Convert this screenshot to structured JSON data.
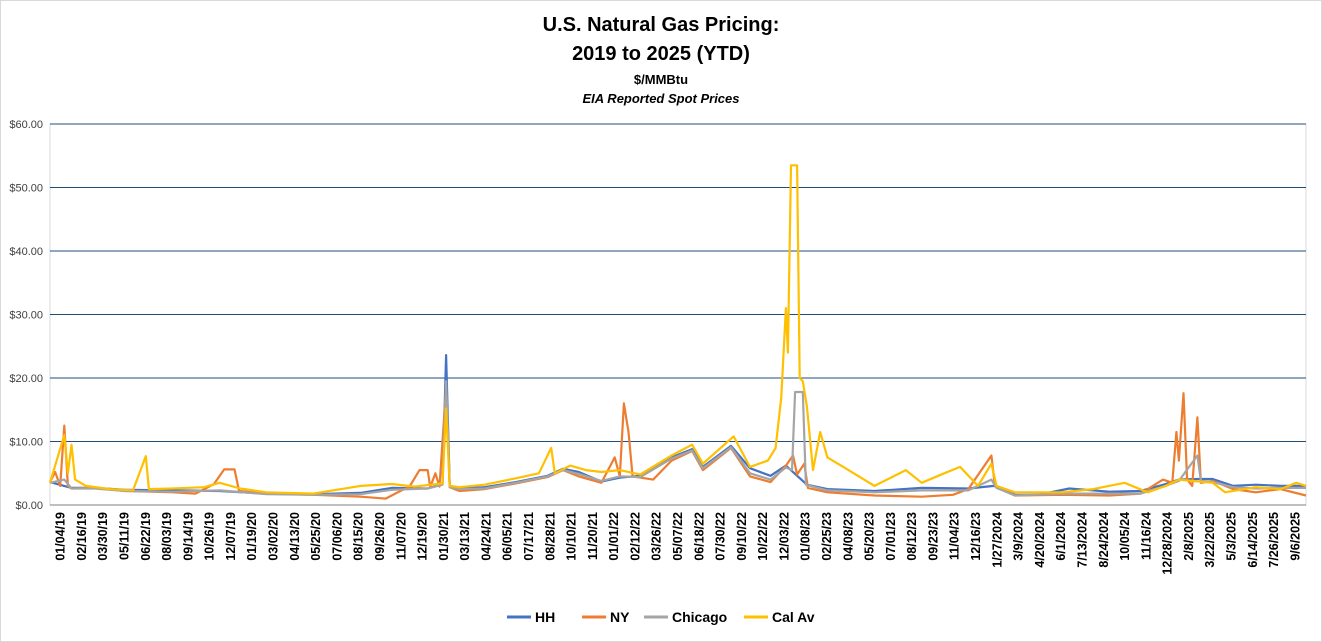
{
  "chart_data": {
    "type": "line",
    "title": "U.S. Natural Gas Pricing:",
    "title_line2": "2019 to 2025 (YTD)",
    "subtitle": "$/MMBtu",
    "subtitle2": "EIA Reported Spot Prices",
    "ylim": [
      0,
      60
    ],
    "yticks": [
      "$0.00",
      "$10.00",
      "$20.00",
      "$30.00",
      "$40.00",
      "$50.00",
      "$60.00"
    ],
    "grid": "horizontal",
    "legend_position": "bottom",
    "x_tick_labels": [
      "01/04/19",
      "02/16/19",
      "03/30/19",
      "05/11/19",
      "06/22/19",
      "08/03/19",
      "09/14/19",
      "10/26/19",
      "12/07/19",
      "01/19/20",
      "03/02/20",
      "04/13/20",
      "05/25/20",
      "07/06/20",
      "08/15/20",
      "09/26/20",
      "11/07/20",
      "12/19/20",
      "01/30/21",
      "03/13/21",
      "04/24/21",
      "06/05/21",
      "07/17/21",
      "08/28/21",
      "10/10/21",
      "11/20/21",
      "01/01/22",
      "02/12/22",
      "03/26/22",
      "05/07/22",
      "06/18/22",
      "07/30/22",
      "09/10/22",
      "10/22/22",
      "12/03/22",
      "01/08/23",
      "02/25/23",
      "04/08/23",
      "05/20/23",
      "07/01/23",
      "08/12/23",
      "09/23/23",
      "11/04/23",
      "12/16/23",
      "1/27/2024",
      "3/9/2024",
      "4/20/2024",
      "6/1/2024",
      "7/13/2024",
      "8/24/2024",
      "10/05/24",
      "11/16/24",
      "12/28/2024",
      "2/8/2025",
      "3/22/2025",
      "5/3/2025",
      "6/14/2025",
      "7/26/2025",
      "9/6/2025"
    ],
    "x_range": [
      "2019-01-04",
      "2025-09-20"
    ],
    "series": [
      {
        "name": "HH",
        "color": "#4472C4",
        "points": [
          [
            "2019-01-04",
            3.6
          ],
          [
            "2019-02-15",
            2.7
          ],
          [
            "2019-04-01",
            2.7
          ],
          [
            "2019-06-01",
            2.4
          ],
          [
            "2019-09-01",
            2.3
          ],
          [
            "2019-12-01",
            2.2
          ],
          [
            "2020-03-01",
            1.8
          ],
          [
            "2020-06-01",
            1.7
          ],
          [
            "2020-09-01",
            1.9
          ],
          [
            "2020-11-01",
            2.7
          ],
          [
            "2021-01-10",
            2.6
          ],
          [
            "2021-02-08",
            3.3
          ],
          [
            "2021-02-15",
            23.6
          ],
          [
            "2021-02-22",
            3.0
          ],
          [
            "2021-03-13",
            2.6
          ],
          [
            "2021-05-01",
            2.8
          ],
          [
            "2021-07-01",
            3.6
          ],
          [
            "2021-09-01",
            4.6
          ],
          [
            "2021-10-01",
            5.7
          ],
          [
            "2021-11-01",
            5.2
          ],
          [
            "2021-12-15",
            3.7
          ],
          [
            "2022-01-20",
            4.3
          ],
          [
            "2022-03-01",
            4.6
          ],
          [
            "2022-05-01",
            7.5
          ],
          [
            "2022-06-10",
            8.8
          ],
          [
            "2022-07-01",
            6.0
          ],
          [
            "2022-08-25",
            9.3
          ],
          [
            "2022-10-01",
            5.8
          ],
          [
            "2022-11-10",
            4.6
          ],
          [
            "2022-12-10",
            6.2
          ],
          [
            "2023-01-20",
            3.2
          ],
          [
            "2023-03-01",
            2.5
          ],
          [
            "2023-06-01",
            2.2
          ],
          [
            "2023-09-01",
            2.7
          ],
          [
            "2023-12-01",
            2.6
          ],
          [
            "2024-01-20",
            3.0
          ],
          [
            "2024-03-01",
            1.6
          ],
          [
            "2024-04-15",
            1.6
          ],
          [
            "2024-06-15",
            2.6
          ],
          [
            "2024-09-01",
            2.1
          ],
          [
            "2024-11-01",
            2.2
          ],
          [
            "2024-12-20",
            3.3
          ],
          [
            "2025-01-15",
            4.0
          ],
          [
            "2025-02-20",
            4.1
          ],
          [
            "2025-03-22",
            4.1
          ],
          [
            "2025-05-01",
            3.0
          ],
          [
            "2025-06-14",
            3.2
          ],
          [
            "2025-08-01",
            3.0
          ],
          [
            "2025-09-20",
            3.0
          ]
        ]
      },
      {
        "name": "NY",
        "color": "#ED7D31",
        "points": [
          [
            "2019-01-04",
            3.6
          ],
          [
            "2019-01-14",
            5.2
          ],
          [
            "2019-01-24",
            3.0
          ],
          [
            "2019-02-01",
            12.5
          ],
          [
            "2019-02-08",
            3.0
          ],
          [
            "2019-02-15",
            2.6
          ],
          [
            "2019-04-01",
            2.7
          ],
          [
            "2019-06-01",
            2.2
          ],
          [
            "2019-09-01",
            2.0
          ],
          [
            "2019-10-15",
            1.8
          ],
          [
            "2019-11-20",
            3.3
          ],
          [
            "2019-12-10",
            5.6
          ],
          [
            "2019-12-30",
            5.6
          ],
          [
            "2020-01-08",
            2.2
          ],
          [
            "2020-03-01",
            1.8
          ],
          [
            "2020-06-01",
            1.6
          ],
          [
            "2020-09-01",
            1.3
          ],
          [
            "2020-10-20",
            1.0
          ],
          [
            "2020-11-20",
            2.3
          ],
          [
            "2020-12-05",
            2.8
          ],
          [
            "2020-12-25",
            5.5
          ],
          [
            "2021-01-10",
            5.5
          ],
          [
            "2021-01-15",
            2.8
          ],
          [
            "2021-01-25",
            5.0
          ],
          [
            "2021-02-02",
            2.9
          ],
          [
            "2021-02-15",
            18.5
          ],
          [
            "2021-02-22",
            2.8
          ],
          [
            "2021-03-13",
            2.2
          ],
          [
            "2021-05-01",
            2.5
          ],
          [
            "2021-07-01",
            3.4
          ],
          [
            "2021-09-01",
            4.4
          ],
          [
            "2021-10-01",
            5.5
          ],
          [
            "2021-11-01",
            4.5
          ],
          [
            "2021-12-15",
            3.5
          ],
          [
            "2022-01-10",
            7.5
          ],
          [
            "2022-01-20",
            4.5
          ],
          [
            "2022-01-28",
            16.0
          ],
          [
            "2022-02-06",
            11.5
          ],
          [
            "2022-02-14",
            4.5
          ],
          [
            "2022-03-26",
            4.0
          ],
          [
            "2022-05-01",
            7.0
          ],
          [
            "2022-06-10",
            8.5
          ],
          [
            "2022-07-01",
            5.5
          ],
          [
            "2022-08-25",
            9.0
          ],
          [
            "2022-10-01",
            4.5
          ],
          [
            "2022-11-10",
            3.6
          ],
          [
            "2022-12-10",
            6.2
          ],
          [
            "2022-12-24",
            7.8
          ],
          [
            "2023-01-01",
            4.8
          ],
          [
            "2023-01-15",
            6.5
          ],
          [
            "2023-01-22",
            2.7
          ],
          [
            "2023-03-01",
            2.0
          ],
          [
            "2023-06-01",
            1.5
          ],
          [
            "2023-09-01",
            1.3
          ],
          [
            "2023-11-01",
            1.6
          ],
          [
            "2023-12-01",
            2.5
          ],
          [
            "2024-01-15",
            7.8
          ],
          [
            "2024-01-22",
            3.0
          ],
          [
            "2024-03-01",
            1.5
          ],
          [
            "2024-06-01",
            1.6
          ],
          [
            "2024-09-01",
            1.5
          ],
          [
            "2024-11-01",
            1.8
          ],
          [
            "2024-12-15",
            4.0
          ],
          [
            "2025-01-02",
            3.5
          ],
          [
            "2025-01-10",
            11.5
          ],
          [
            "2025-01-15",
            7.0
          ],
          [
            "2025-01-24",
            17.6
          ],
          [
            "2025-01-31",
            4.0
          ],
          [
            "2025-02-10",
            3.0
          ],
          [
            "2025-02-20",
            13.8
          ],
          [
            "2025-02-27",
            3.5
          ],
          [
            "2025-03-22",
            3.8
          ],
          [
            "2025-05-01",
            2.5
          ],
          [
            "2025-06-14",
            2.0
          ],
          [
            "2025-08-01",
            2.5
          ],
          [
            "2025-09-20",
            1.5
          ]
        ]
      },
      {
        "name": "Chicago",
        "color": "#A5A5A5",
        "points": [
          [
            "2019-01-04",
            3.5
          ],
          [
            "2019-02-01",
            4.0
          ],
          [
            "2019-02-15",
            2.6
          ],
          [
            "2019-04-01",
            2.6
          ],
          [
            "2019-06-01",
            2.2
          ],
          [
            "2019-09-01",
            2.1
          ],
          [
            "2019-12-01",
            2.3
          ],
          [
            "2020-03-01",
            1.7
          ],
          [
            "2020-06-01",
            1.6
          ],
          [
            "2020-09-01",
            1.7
          ],
          [
            "2020-11-01",
            2.4
          ],
          [
            "2021-01-10",
            2.6
          ],
          [
            "2021-02-08",
            3.2
          ],
          [
            "2021-02-15",
            19.5
          ],
          [
            "2021-02-22",
            2.8
          ],
          [
            "2021-03-13",
            2.5
          ],
          [
            "2021-05-01",
            2.6
          ],
          [
            "2021-07-01",
            3.5
          ],
          [
            "2021-09-01",
            4.5
          ],
          [
            "2021-10-01",
            5.5
          ],
          [
            "2021-11-01",
            4.9
          ],
          [
            "2021-12-15",
            3.8
          ],
          [
            "2022-01-20",
            4.5
          ],
          [
            "2022-03-01",
            4.4
          ],
          [
            "2022-05-01",
            7.3
          ],
          [
            "2022-06-10",
            8.6
          ],
          [
            "2022-07-01",
            5.8
          ],
          [
            "2022-08-25",
            9.1
          ],
          [
            "2022-10-01",
            5.0
          ],
          [
            "2022-11-10",
            4.0
          ],
          [
            "2022-12-10",
            5.9
          ],
          [
            "2022-12-22",
            5.5
          ],
          [
            "2022-12-28",
            17.8
          ],
          [
            "2023-01-12",
            17.8
          ],
          [
            "2023-01-18",
            3.2
          ],
          [
            "2023-03-01",
            2.3
          ],
          [
            "2023-06-01",
            2.0
          ],
          [
            "2023-09-01",
            2.3
          ],
          [
            "2023-12-01",
            2.3
          ],
          [
            "2024-01-15",
            4.0
          ],
          [
            "2024-01-25",
            2.7
          ],
          [
            "2024-03-01",
            1.5
          ],
          [
            "2024-06-01",
            1.8
          ],
          [
            "2024-09-01",
            1.8
          ],
          [
            "2024-11-01",
            1.8
          ],
          [
            "2024-12-20",
            3.0
          ],
          [
            "2025-01-15",
            3.8
          ],
          [
            "2025-02-20",
            7.8
          ],
          [
            "2025-02-27",
            3.8
          ],
          [
            "2025-03-22",
            3.6
          ],
          [
            "2025-05-01",
            2.8
          ],
          [
            "2025-06-14",
            2.6
          ],
          [
            "2025-08-01",
            2.7
          ],
          [
            "2025-09-20",
            2.7
          ]
        ]
      },
      {
        "name": "Cal Av",
        "color": "#FFC000",
        "points": [
          [
            "2019-01-04",
            3.5
          ],
          [
            "2019-02-01",
            11.0
          ],
          [
            "2019-02-08",
            5.0
          ],
          [
            "2019-02-15",
            9.5
          ],
          [
            "2019-02-22",
            4.0
          ],
          [
            "2019-03-15",
            3.0
          ],
          [
            "2019-05-01",
            2.5
          ],
          [
            "2019-06-15",
            2.3
          ],
          [
            "2019-07-10",
            7.7
          ],
          [
            "2019-07-16",
            2.5
          ],
          [
            "2019-09-01",
            2.6
          ],
          [
            "2019-11-01",
            2.8
          ],
          [
            "2019-12-01",
            3.5
          ],
          [
            "2020-01-10",
            2.6
          ],
          [
            "2020-03-01",
            2.0
          ],
          [
            "2020-06-01",
            1.8
          ],
          [
            "2020-09-01",
            3.0
          ],
          [
            "2020-11-01",
            3.3
          ],
          [
            "2020-12-15",
            2.9
          ],
          [
            "2021-02-08",
            3.4
          ],
          [
            "2021-02-15",
            15.2
          ],
          [
            "2021-02-22",
            3.0
          ],
          [
            "2021-03-13",
            2.8
          ],
          [
            "2021-05-01",
            3.2
          ],
          [
            "2021-07-01",
            4.2
          ],
          [
            "2021-08-15",
            5.0
          ],
          [
            "2021-09-08",
            9.0
          ],
          [
            "2021-09-15",
            5.0
          ],
          [
            "2021-10-15",
            6.2
          ],
          [
            "2021-11-15",
            5.5
          ],
          [
            "2021-12-15",
            5.2
          ],
          [
            "2022-01-20",
            5.5
          ],
          [
            "2022-03-01",
            4.8
          ],
          [
            "2022-05-01",
            7.8
          ],
          [
            "2022-06-10",
            9.5
          ],
          [
            "2022-07-01",
            6.5
          ],
          [
            "2022-08-30",
            10.8
          ],
          [
            "2022-10-01",
            6.0
          ],
          [
            "2022-11-05",
            7.0
          ],
          [
            "2022-11-20",
            9.0
          ],
          [
            "2022-12-01",
            17.0
          ],
          [
            "2022-12-10",
            31.0
          ],
          [
            "2022-12-14",
            24.0
          ],
          [
            "2022-12-20",
            53.5
          ],
          [
            "2023-01-01",
            53.5
          ],
          [
            "2023-01-06",
            20.0
          ],
          [
            "2023-01-12",
            19.5
          ],
          [
            "2023-01-20",
            15.5
          ],
          [
            "2023-02-01",
            5.5
          ],
          [
            "2023-02-15",
            11.5
          ],
          [
            "2023-03-01",
            7.5
          ],
          [
            "2023-04-01",
            6.0
          ],
          [
            "2023-06-01",
            3.0
          ],
          [
            "2023-08-01",
            5.5
          ],
          [
            "2023-09-01",
            3.5
          ],
          [
            "2023-10-15",
            5.0
          ],
          [
            "2023-11-15",
            6.0
          ],
          [
            "2023-12-20",
            3.0
          ],
          [
            "2024-01-15",
            6.5
          ],
          [
            "2024-01-25",
            3.0
          ],
          [
            "2024-03-01",
            2.0
          ],
          [
            "2024-06-01",
            2.0
          ],
          [
            "2024-08-01",
            2.5
          ],
          [
            "2024-10-01",
            3.5
          ],
          [
            "2024-11-15",
            2.0
          ],
          [
            "2024-12-20",
            3.0
          ],
          [
            "2025-01-15",
            4.0
          ],
          [
            "2025-03-22",
            3.5
          ],
          [
            "2025-04-15",
            2.0
          ],
          [
            "2025-06-14",
            2.8
          ],
          [
            "2025-08-01",
            2.5
          ],
          [
            "2025-09-01",
            3.5
          ],
          [
            "2025-09-20",
            3.0
          ]
        ]
      }
    ]
  }
}
